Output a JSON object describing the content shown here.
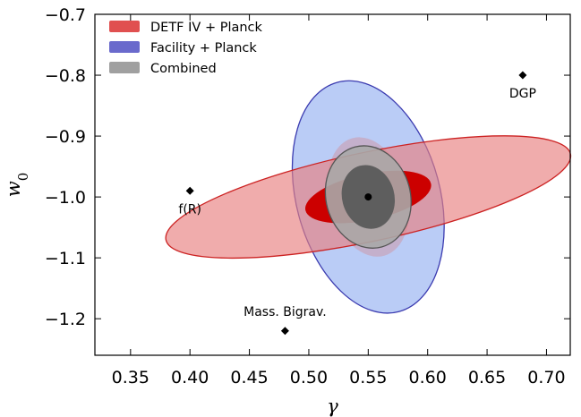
{
  "chart_data": {
    "type": "scatter",
    "title": "",
    "xlabel": "γ",
    "ylabel": "w0",
    "xlim": [
      0.32,
      0.72
    ],
    "ylim": [
      -1.26,
      -0.7
    ],
    "xticks": [
      "0.35",
      "0.40",
      "0.45",
      "0.50",
      "0.55",
      "0.60",
      "0.65",
      "0.70"
    ],
    "xtick_values": [
      0.35,
      0.4,
      0.45,
      0.5,
      0.55,
      0.6,
      0.65,
      0.7
    ],
    "yticks": [
      "−0.7",
      "−0.8",
      "−0.9",
      "−1.0",
      "−1.1",
      "−1.2"
    ],
    "ytick_values": [
      -0.7,
      -0.8,
      -0.9,
      -1.0,
      -1.1,
      -1.2
    ],
    "grid": false,
    "legend_position": "top-left",
    "legend": [
      {
        "label": "DETF IV + Planck",
        "color": "#e05050"
      },
      {
        "label": "Facility + Planck",
        "color": "#6a6acc"
      },
      {
        "label": "Combined",
        "color": "#a0a0a0"
      }
    ],
    "fiducial": {
      "x": 0.55,
      "y": -1.0
    },
    "ellipses": [
      {
        "series": "Facility + Planck",
        "level": "2-sigma",
        "cx": 0.55,
        "cy": -1.0,
        "half_width_x": 0.0605,
        "half_width_y": 0.195,
        "angle_deg": -15,
        "fill": "#aec3f5",
        "stroke": "#3b3bb0",
        "opacity": 0.85
      },
      {
        "series": "Facility + Planck",
        "level": "1-sigma",
        "cx": 0.55,
        "cy": -1.0,
        "half_width_x": 0.033,
        "half_width_y": 0.1,
        "angle_deg": -15,
        "fill": "#cc99aa",
        "stroke": "none",
        "opacity": 0.55
      },
      {
        "series": "DETF IV + Planck",
        "level": "2-sigma",
        "cx": 0.55,
        "cy": -1.0,
        "half_width_x": 0.174,
        "half_width_y": 0.073,
        "angle_deg": -12,
        "fill": "#e88080",
        "stroke": "#cc2222",
        "opacity": 0.65
      },
      {
        "series": "DETF IV + Planck",
        "level": "1-sigma",
        "cx": 0.55,
        "cy": -1.0,
        "half_width_x": 0.054,
        "half_width_y": 0.038,
        "angle_deg": -12,
        "fill": "#cc0000",
        "stroke": "none",
        "opacity": 1.0
      },
      {
        "series": "Combined",
        "level": "2-sigma",
        "cx": 0.55,
        "cy": -1.0,
        "half_width_x": 0.0355,
        "half_width_y": 0.085,
        "angle_deg": -15,
        "fill": "#a8a8a8",
        "stroke": "#555555",
        "opacity": 0.9
      },
      {
        "series": "Combined",
        "level": "1-sigma",
        "cx": 0.55,
        "cy": -1.0,
        "half_width_x": 0.022,
        "half_width_y": 0.053,
        "angle_deg": -15,
        "fill": "#5e5e5e",
        "stroke": "none",
        "opacity": 1.0
      }
    ],
    "models": [
      {
        "label": "DGP",
        "x": 0.68,
        "y": -0.8,
        "label_pos": "below"
      },
      {
        "label": "f(R)",
        "x": 0.4,
        "y": -0.99,
        "label_pos": "below"
      },
      {
        "label": "Mass. Bigrav.",
        "x": 0.48,
        "y": -1.22,
        "label_pos": "above"
      }
    ]
  }
}
